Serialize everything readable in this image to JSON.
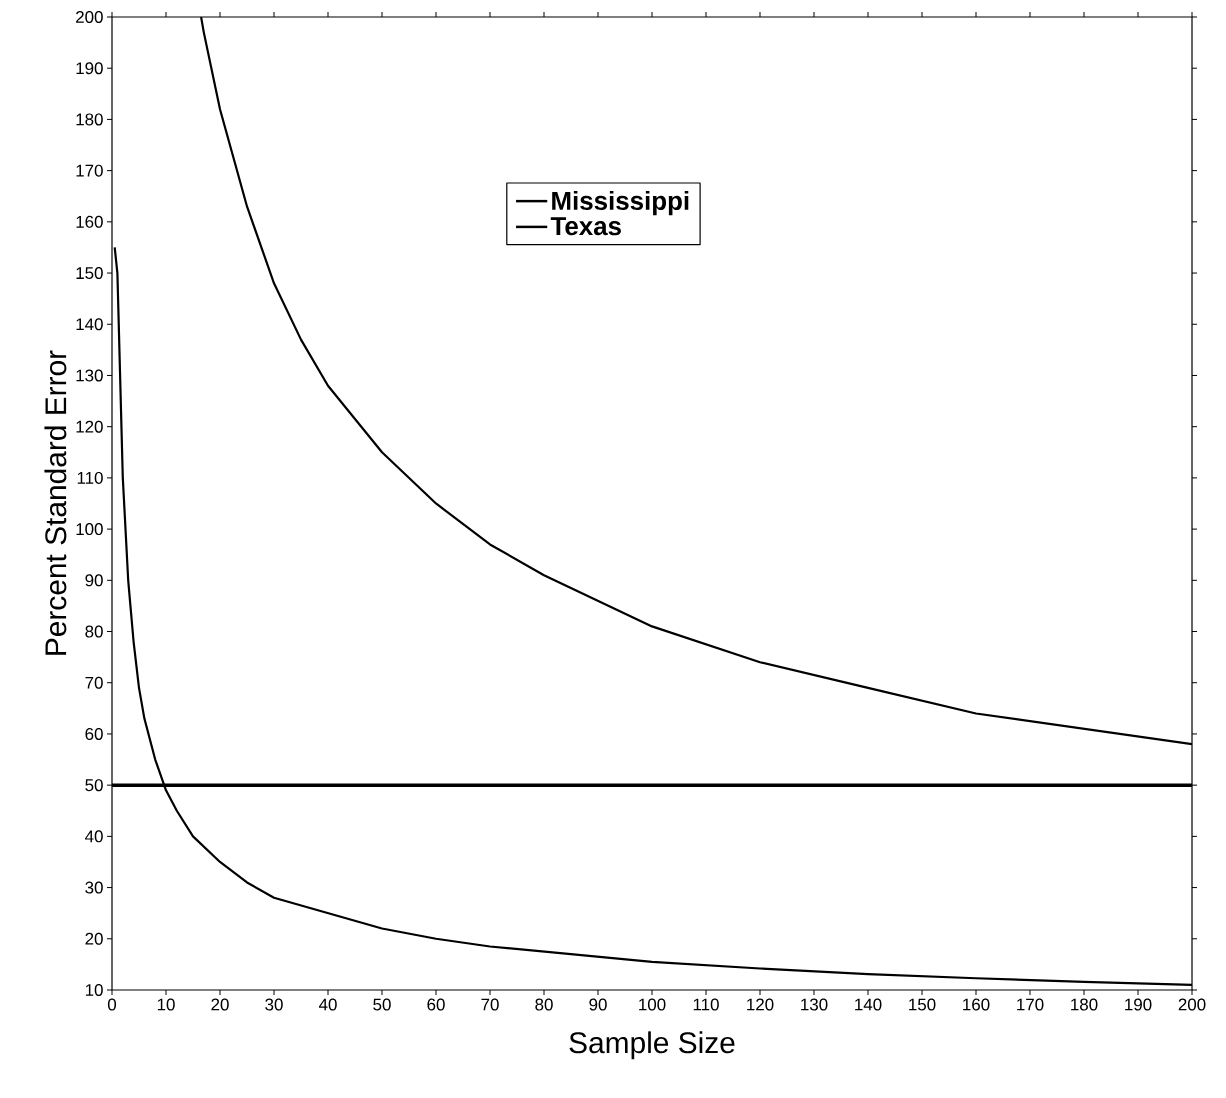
{
  "chart_data": {
    "type": "line",
    "xlabel": "Sample Size",
    "ylabel": "Percent Standard Error",
    "xlim": [
      0,
      200
    ],
    "ylim": [
      10,
      200
    ],
    "xticks": [
      0,
      10,
      20,
      30,
      40,
      50,
      60,
      70,
      80,
      90,
      100,
      110,
      120,
      130,
      140,
      150,
      160,
      170,
      180,
      190,
      200
    ],
    "yticks": [
      10,
      20,
      30,
      40,
      50,
      60,
      70,
      80,
      90,
      100,
      110,
      120,
      130,
      140,
      150,
      160,
      170,
      180,
      190,
      200
    ],
    "legend": "top",
    "grid": false,
    "marker": "none",
    "line_style": "solid",
    "ref_lines": [
      {
        "axis": "y",
        "value": 50,
        "color": "#000000"
      }
    ],
    "series": [
      {
        "name": "Mississippi",
        "color": "#000000",
        "x": [
          16.5,
          17,
          20,
          25,
          30,
          35,
          40,
          50,
          60,
          70,
          80,
          90,
          100,
          120,
          140,
          160,
          180,
          200
        ],
        "values": [
          200,
          197,
          182,
          163,
          148,
          137,
          128,
          115,
          105,
          97,
          91,
          86,
          81,
          74,
          69,
          64,
          61,
          58
        ]
      },
      {
        "name": "Texas",
        "color": "#000000",
        "x": [
          0.5,
          1,
          2,
          3,
          4,
          5,
          6,
          8,
          10,
          12,
          15,
          20,
          25,
          30,
          40,
          50,
          60,
          70,
          80,
          100,
          120,
          140,
          160,
          180,
          200
        ],
        "values": [
          155,
          150,
          110,
          90,
          78,
          69,
          63,
          55,
          49,
          45,
          40,
          35,
          31,
          28,
          25,
          22,
          20,
          18.5,
          17.5,
          15.5,
          14.2,
          13.1,
          12.3,
          11.6,
          11
        ]
      }
    ]
  }
}
